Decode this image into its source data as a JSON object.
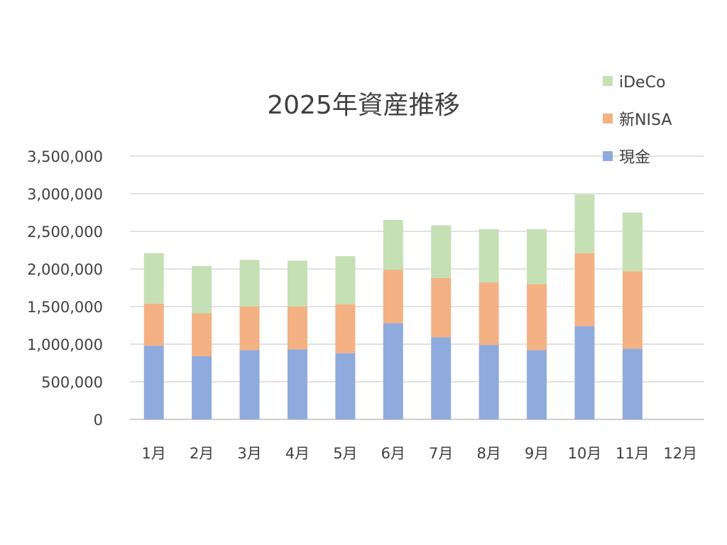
{
  "chart_data": {
    "type": "bar",
    "stacked": true,
    "title": "2025年資産推移",
    "xlabel": "",
    "ylabel": "",
    "ylim": [
      0,
      3500000
    ],
    "yticks": [
      0,
      500000,
      1000000,
      1500000,
      2000000,
      2500000,
      3000000,
      3500000
    ],
    "ytick_labels": [
      "0",
      "500,000",
      "1,000,000",
      "1,500,000",
      "2,000,000",
      "2,500,000",
      "3,000,000",
      "3,500,000"
    ],
    "grid": true,
    "legend_position": "top-right",
    "categories": [
      "1月",
      "2月",
      "3月",
      "4月",
      "5月",
      "6月",
      "7月",
      "8月",
      "9月",
      "10月",
      "11月",
      "12月"
    ],
    "series": [
      {
        "name": "現金",
        "color": "#8FAADC",
        "values": [
          980000,
          840000,
          920000,
          930000,
          880000,
          1280000,
          1090000,
          990000,
          920000,
          1240000,
          940000,
          null
        ]
      },
      {
        "name": "新NISA",
        "color": "#F4B183",
        "values": [
          560000,
          570000,
          580000,
          570000,
          650000,
          710000,
          790000,
          830000,
          880000,
          970000,
          1030000,
          null
        ]
      },
      {
        "name": "iDeCo",
        "color": "#C5E0B4",
        "values": [
          670000,
          630000,
          620000,
          610000,
          640000,
          660000,
          700000,
          710000,
          730000,
          780000,
          780000,
          null
        ]
      }
    ]
  }
}
